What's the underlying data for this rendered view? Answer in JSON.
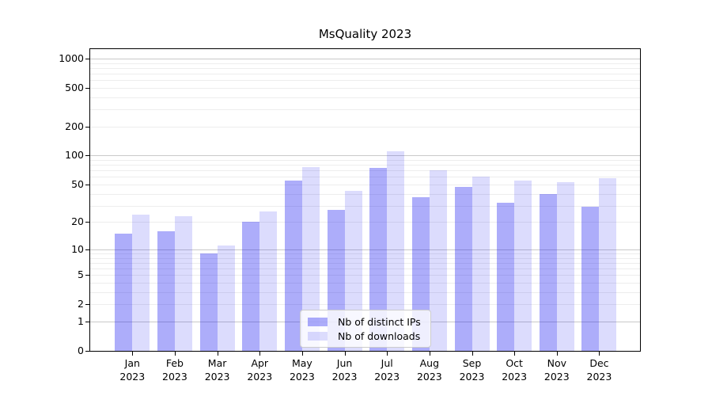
{
  "title": "MsQuality 2023",
  "legend": {
    "items": [
      {
        "label": "Nb of distinct IPs",
        "color": "rgba(20,20,240,0.35)"
      },
      {
        "label": "Nb of downloads",
        "color": "rgba(20,20,240,0.15)"
      }
    ]
  },
  "chart_data": {
    "type": "bar",
    "title": "MsQuality 2023",
    "categories": [
      "Jan 2023",
      "Feb 2023",
      "Mar 2023",
      "Apr 2023",
      "May 2023",
      "Jun 2023",
      "Jul 2023",
      "Aug 2023",
      "Sep 2023",
      "Oct 2023",
      "Nov 2023",
      "Dec 2023"
    ],
    "series": [
      {
        "name": "Nb of distinct IPs",
        "color": "rgba(20,20,240,0.35)",
        "values": [
          15,
          16,
          9,
          20,
          55,
          27,
          75,
          37,
          47,
          32,
          40,
          29
        ]
      },
      {
        "name": "Nb of downloads",
        "color": "rgba(20,20,240,0.15)",
        "values": [
          24,
          23,
          11,
          26,
          76,
          43,
          110,
          70,
          60,
          55,
          53,
          58
        ]
      }
    ],
    "yscale": "log10(1+x)",
    "ylim": [
      0,
      1250
    ],
    "yticks": [
      0,
      1,
      2,
      5,
      10,
      20,
      50,
      100,
      200,
      500,
      1000
    ],
    "grid_major": [
      1,
      10,
      100,
      1000
    ],
    "grid_minor": [
      2,
      3,
      4,
      5,
      6,
      7,
      8,
      9,
      20,
      30,
      40,
      50,
      60,
      70,
      80,
      90,
      200,
      300,
      400,
      500,
      600,
      700,
      800,
      900
    ],
    "legend_position": "lower center",
    "grid": true,
    "bar_colors": {
      "distinct_ips": "#a6a6f8",
      "downloads": "#dadafb"
    }
  }
}
